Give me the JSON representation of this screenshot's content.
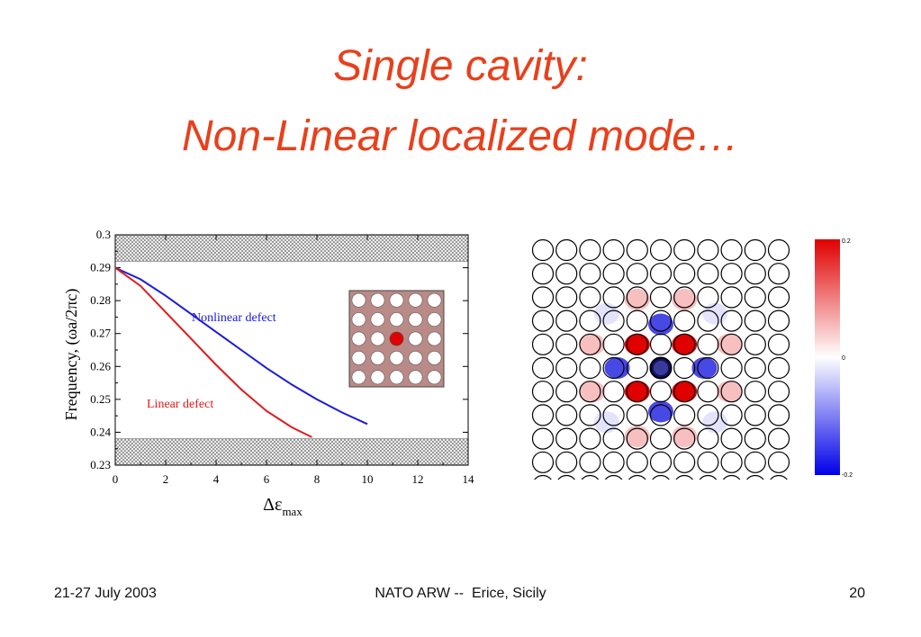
{
  "slide": {
    "title_line1": "Single cavity:",
    "title_line2": "Non-Linear localized mode…",
    "title_color": "#e8401c"
  },
  "footer": {
    "left": "21-27 July 2003",
    "center": "NATO ARW --  Erice, Sicily",
    "right": "20"
  },
  "chart_data": {
    "type": "line",
    "xlabel": "Δε",
    "xlabel_subscript": "max",
    "ylabel": "Frequency,  (ωa/2πc)",
    "xlim": [
      0,
      14
    ],
    "ylim": [
      0.23,
      0.3
    ],
    "xticks": [
      "0",
      "2",
      "4",
      "6",
      "8",
      "10",
      "12",
      "14"
    ],
    "yticks": [
      "0.23",
      "0.24",
      "0.25",
      "0.26",
      "0.27",
      "0.28",
      "0.29",
      "0.3"
    ],
    "band_gap_edges": {
      "upper_band_from": 0.292,
      "lower_band_to": 0.238
    },
    "series": [
      {
        "name": "Nonlinear defect",
        "color": "#1a1adf",
        "x": [
          0,
          1,
          2,
          3,
          4,
          5,
          6,
          7,
          8,
          9,
          10
        ],
        "y": [
          0.29,
          0.2865,
          0.2815,
          0.276,
          0.2705,
          0.265,
          0.2595,
          0.2545,
          0.25,
          0.246,
          0.2425
        ]
      },
      {
        "name": "Linear defect",
        "color": "#e01a1a",
        "x": [
          0,
          1,
          2,
          3,
          4,
          5,
          6,
          7,
          7.8
        ],
        "y": [
          0.29,
          0.2845,
          0.2765,
          0.2685,
          0.2605,
          0.253,
          0.2465,
          0.2415,
          0.2385
        ]
      }
    ]
  },
  "inset": {
    "rows": 5,
    "cols": 5,
    "defect_row": 2,
    "defect_col": 2,
    "background": "#b98a86",
    "rod_color": "#ffffff",
    "defect_color": "#e00000"
  },
  "cavity_map": {
    "rows": 11,
    "cols": 11,
    "center_row": 5,
    "center_col": 5,
    "positive_color": "#e00000",
    "negative_color": "#1a1adf"
  },
  "colorbar": {
    "top_label": "0.2",
    "mid_label": "0",
    "bottom_label": "-0.2"
  }
}
